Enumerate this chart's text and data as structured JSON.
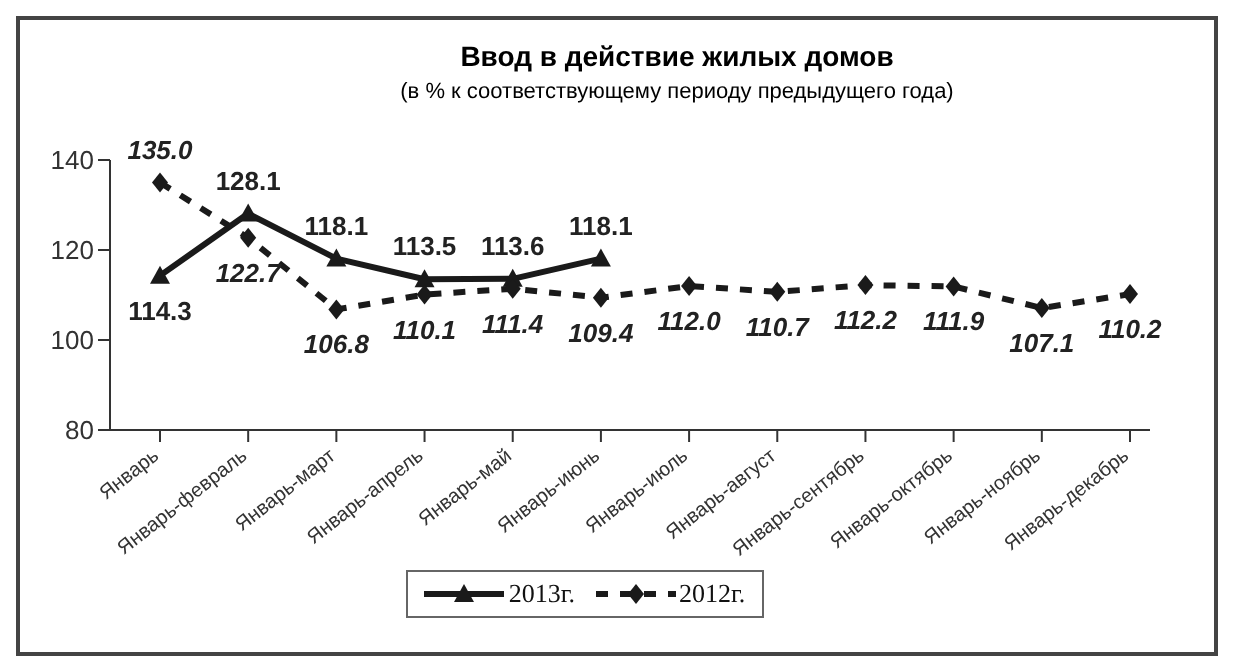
{
  "chart_data": {
    "type": "line",
    "title": "Ввод в действие жилых домов",
    "subtitle": "(в % к соответствующему периоду предыдущего года)",
    "categories": [
      "Январь",
      "Январь-февраль",
      "Январь-март",
      "Январь-апрель",
      "Январь-май",
      "Январь-июнь",
      "Январь-июль",
      "Январь-август",
      "Январь-сентябрь",
      "Январь-октябрь",
      "Январь-ноябрь",
      "Январь-декабрь"
    ],
    "series": [
      {
        "name": "2013г.",
        "color": "#1a1a1a",
        "marker": "triangle",
        "line_style": "solid",
        "values": [
          114.3,
          128.1,
          118.1,
          113.5,
          113.6,
          118.1,
          null,
          null,
          null,
          null,
          null,
          null
        ],
        "value_labels": [
          "114.3",
          "128.1",
          "118.1",
          "113.5",
          "113.6",
          "118.1",
          null,
          null,
          null,
          null,
          null,
          null
        ]
      },
      {
        "name": "2012г.",
        "color": "#1a1a1a",
        "marker": "diamond",
        "line_style": "dashed",
        "values": [
          135.0,
          122.7,
          106.8,
          110.1,
          111.4,
          109.4,
          112.0,
          110.7,
          112.2,
          111.9,
          107.1,
          110.2
        ],
        "value_labels": [
          "135.0",
          "122.7",
          "106.8",
          "110.1",
          "111.4",
          "109.4",
          "112.0",
          "110.7",
          "112.2",
          "111.9",
          "107.1",
          "110.2"
        ]
      }
    ],
    "ylim": [
      80,
      140
    ],
    "yticks": [
      80,
      100,
      120,
      140
    ],
    "grid": false,
    "legend": "bottom"
  }
}
